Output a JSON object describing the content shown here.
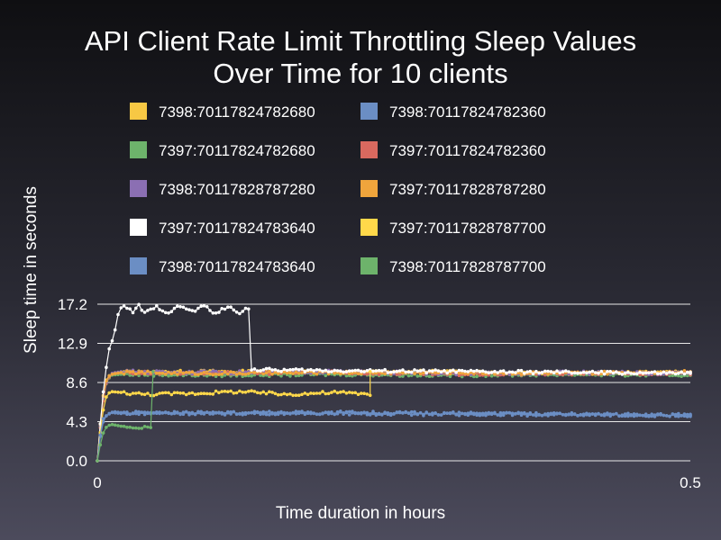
{
  "chart_data": {
    "type": "line",
    "title_lines": [
      "API Client Rate Limit Throttling Sleep Values",
      "Over Time for 10 clients"
    ],
    "xlabel": "Time duration in hours",
    "ylabel": "Sleep time in seconds",
    "xlim": [
      0,
      0.5
    ],
    "ylim": [
      0,
      17.2
    ],
    "xticks": [
      "0",
      "0.5"
    ],
    "xtick_values": [
      0,
      0.5
    ],
    "yticks": [
      "0.0",
      "4.3",
      "8.6",
      "12.9",
      "17.2"
    ],
    "ytick_values": [
      0,
      4.3,
      8.6,
      12.9,
      17.2
    ],
    "grid": "horizontal",
    "legend_position": "top",
    "series": [
      {
        "name": "7398:70117824782680",
        "color": "#f7c844",
        "x": [
          0,
          0.004,
          0.008,
          0.012,
          0.016,
          0.02,
          0.1,
          0.2,
          0.3,
          0.4,
          0.5
        ],
        "y": [
          0,
          6.5,
          9.2,
          9.5,
          9.6,
          9.7,
          9.8,
          9.7,
          9.8,
          9.6,
          9.7
        ]
      },
      {
        "name": "7398:70117824782360",
        "color": "#6b8ec4",
        "x": [
          0,
          0.003,
          0.006,
          0.01,
          0.014,
          0.02,
          0.1,
          0.2,
          0.3,
          0.4,
          0.5
        ],
        "y": [
          0,
          3.2,
          4.8,
          5.2,
          5.4,
          5.3,
          5.2,
          5.3,
          5.2,
          5.1,
          5.0
        ]
      },
      {
        "name": "7397:70117824782680",
        "color": "#6db36b",
        "x": [
          0,
          0.004,
          0.008,
          0.012,
          0.02,
          0.1,
          0.2,
          0.3,
          0.4,
          0.5
        ],
        "y": [
          0,
          6.0,
          8.8,
          9.4,
          9.5,
          9.4,
          9.5,
          9.4,
          9.5,
          9.4
        ]
      },
      {
        "name": "7397:70117824782360",
        "color": "#d9695f",
        "x": [
          0,
          0.004,
          0.008,
          0.012,
          0.02,
          0.1,
          0.2,
          0.3,
          0.4,
          0.5
        ],
        "y": [
          0,
          5.8,
          8.9,
          9.5,
          9.7,
          9.6,
          9.7,
          9.5,
          9.6,
          9.6
        ]
      },
      {
        "name": "7398:70117828787280",
        "color": "#8b6fb3",
        "x": [
          0,
          0.004,
          0.008,
          0.012,
          0.02,
          0.1,
          0.2,
          0.3,
          0.4,
          0.5
        ],
        "y": [
          0,
          6.2,
          9.0,
          9.6,
          9.8,
          9.7,
          9.8,
          9.6,
          9.7,
          9.6
        ]
      },
      {
        "name": "7397:70117828787280",
        "color": "#f0a53c",
        "x": [
          0,
          0.004,
          0.008,
          0.012,
          0.02,
          0.1,
          0.2,
          0.3,
          0.4,
          0.5
        ],
        "y": [
          0,
          6.4,
          9.1,
          9.5,
          9.7,
          9.6,
          9.7,
          9.7,
          9.6,
          9.8
        ]
      },
      {
        "name": "7397:70117824783640",
        "color": "#ffffff",
        "x": [
          0,
          0.004,
          0.008,
          0.01,
          0.014,
          0.018,
          0.02,
          0.025,
          0.03,
          0.035,
          0.04,
          0.05,
          0.06,
          0.07,
          0.08,
          0.09,
          0.1,
          0.11,
          0.12,
          0.13,
          0.124,
          0.125,
          0.13,
          0.2,
          0.3,
          0.4,
          0.5
        ],
        "y": [
          0,
          6.5,
          10.8,
          12.3,
          13.7,
          16.4,
          16.8,
          16.9,
          16.2,
          17.1,
          16.2,
          16.9,
          16.3,
          17.0,
          16.4,
          17.0,
          16.2,
          16.9,
          16.3,
          17.0,
          16.8,
          17.0,
          10.0,
          9.9,
          9.8,
          9.7,
          9.6
        ]
      },
      {
        "name": "7397:70117828787700",
        "color": "#ffd84a",
        "x": [
          0,
          0.004,
          0.008,
          0.012,
          0.02,
          0.04,
          0.08,
          0.12,
          0.16,
          0.2,
          0.24,
          0.228,
          0.23,
          0.23
        ],
        "y": [
          0,
          5.0,
          7.3,
          7.6,
          7.5,
          7.3,
          7.4,
          7.6,
          7.3,
          7.5,
          7.3,
          7.2,
          7.2,
          9.8
        ]
      },
      {
        "name": "7398:70117824783640",
        "color": "#6b8ec4",
        "x": [
          0,
          0.004,
          0.008,
          0.012,
          0.02,
          0.1,
          0.2,
          0.3,
          0.4,
          0.5
        ],
        "y": [
          0,
          4.5,
          5.0,
          5.3,
          5.2,
          5.3,
          5.2,
          5.1,
          5.1,
          5.0
        ]
      },
      {
        "name": "7398:70117828787700",
        "color": "#6db36b",
        "x": [
          0,
          0.004,
          0.008,
          0.012,
          0.02,
          0.03,
          0.04,
          0.046,
          0.047,
          0.047
        ],
        "y": [
          0,
          2.8,
          3.8,
          4.0,
          3.8,
          3.7,
          3.7,
          3.6,
          3.6,
          9.8
        ]
      }
    ]
  }
}
